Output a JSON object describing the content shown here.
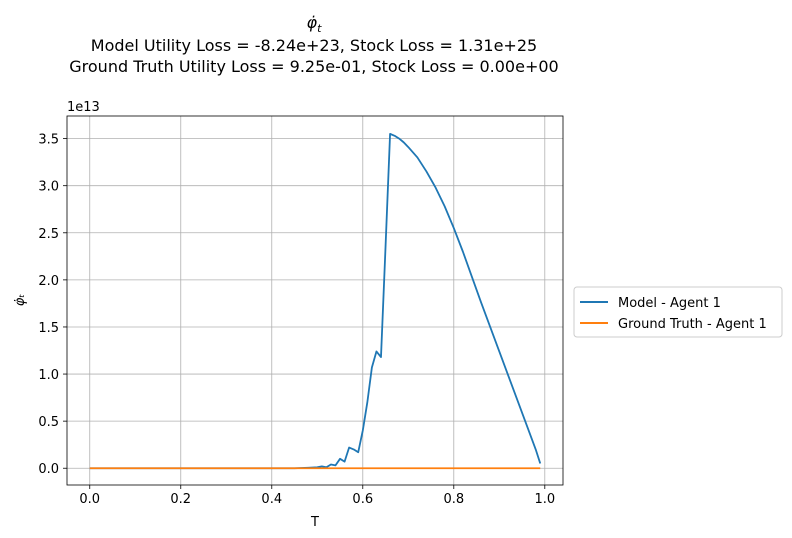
{
  "title": {
    "symbol": "φ̇",
    "subscript": "t",
    "line2": "Model Utility Loss = -8.24e+23, Stock Loss = 1.31e+25",
    "line3": "Ground Truth Utility Loss = 9.25e-01, Stock Loss = 0.00e+00"
  },
  "chart_data": {
    "type": "line",
    "xlabel": "T",
    "ylabel": "φ̇ₜ",
    "y_offset_label": "1e13",
    "xlim": [
      -0.05,
      1.04
    ],
    "ylim": [
      -0.178,
      3.74
    ],
    "y_scale": 10000000000000.0,
    "x_ticks": [
      0.0,
      0.2,
      0.4,
      0.6,
      0.8,
      1.0
    ],
    "x_tick_labels": [
      "0.0",
      "0.2",
      "0.4",
      "0.6",
      "0.8",
      "1.0"
    ],
    "y_ticks": [
      0.0,
      0.5,
      1.0,
      1.5,
      2.0,
      2.5,
      3.0,
      3.5
    ],
    "y_tick_labels": [
      "0.0",
      "0.5",
      "1.0",
      "1.5",
      "2.0",
      "2.5",
      "3.0",
      "3.5"
    ],
    "grid": true,
    "legend_position": "outside-right",
    "series": [
      {
        "name": "Model - Agent 1",
        "color": "#1f77b4",
        "x": [
          0.0,
          0.1,
          0.2,
          0.3,
          0.4,
          0.45,
          0.48,
          0.5,
          0.51,
          0.52,
          0.53,
          0.54,
          0.55,
          0.56,
          0.57,
          0.58,
          0.59,
          0.6,
          0.61,
          0.62,
          0.63,
          0.64,
          0.65,
          0.66,
          0.67,
          0.68,
          0.69,
          0.7,
          0.72,
          0.74,
          0.76,
          0.78,
          0.8,
          0.82,
          0.84,
          0.86,
          0.88,
          0.9,
          0.92,
          0.94,
          0.96,
          0.98,
          0.99
        ],
        "y": [
          0.0,
          0.0,
          0.0,
          0.0,
          0.0,
          0.0,
          0.005,
          0.01,
          0.02,
          0.01,
          0.04,
          0.03,
          0.1,
          0.07,
          0.22,
          0.2,
          0.17,
          0.4,
          0.7,
          1.07,
          1.24,
          1.18,
          2.35,
          3.55,
          3.53,
          3.5,
          3.46,
          3.41,
          3.3,
          3.15,
          2.98,
          2.78,
          2.55,
          2.3,
          2.03,
          1.76,
          1.5,
          1.24,
          0.98,
          0.72,
          0.46,
          0.2,
          0.05
        ]
      },
      {
        "name": "Ground Truth - Agent 1",
        "color": "#ff7f0e",
        "x": [
          0.0,
          0.99
        ],
        "y": [
          0.0,
          0.0
        ]
      }
    ]
  }
}
